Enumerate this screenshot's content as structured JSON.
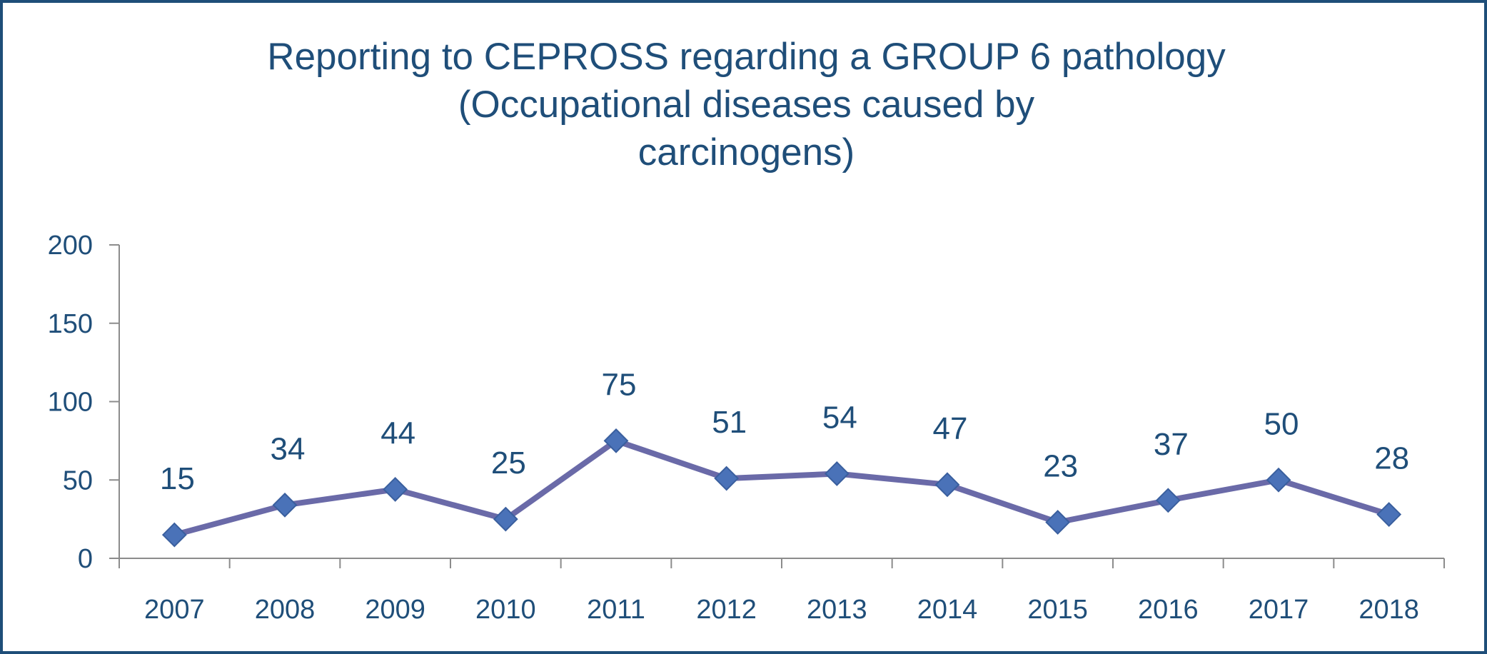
{
  "chart_data": {
    "type": "line",
    "title_lines": [
      "Reporting to CEPROSS regarding a GROUP 6 pathology",
      "(Occupational diseases caused by",
      "carcinogens)"
    ],
    "xlabel": "",
    "ylabel": "",
    "categories": [
      "2007",
      "2008",
      "2009",
      "2010",
      "2011",
      "2012",
      "2013",
      "2014",
      "2015",
      "2016",
      "2017",
      "2018"
    ],
    "series": [
      {
        "values": [
          15,
          34,
          44,
          25,
          75,
          51,
          54,
          47,
          23,
          37,
          50,
          28
        ],
        "line_color": "#6a6aa8",
        "marker": "diamond",
        "marker_color": "#4a72b8"
      }
    ],
    "data_labels": true,
    "ylim": [
      0,
      200
    ],
    "yticks": [
      0,
      50,
      100,
      150,
      200
    ],
    "grid": false,
    "legend": "none",
    "text_color": "#1f4e79",
    "axis_color": "#8c8c8c"
  }
}
